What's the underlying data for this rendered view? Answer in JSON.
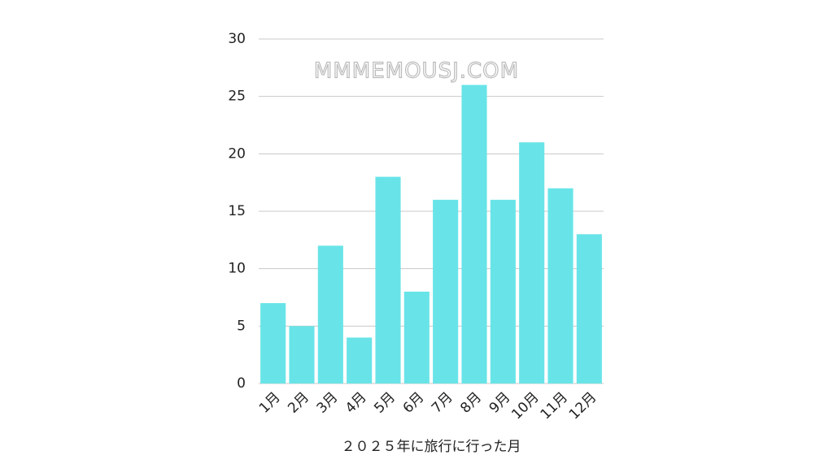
{
  "chart_data": {
    "type": "bar",
    "annotation": "MMMEMOUSJ.COM",
    "x_label": "２０２５年に旅行に行った月",
    "categories": [
      "1月",
      "2月",
      "3月",
      "4月",
      "5月",
      "6月",
      "7月",
      "8月",
      "9月",
      "10月",
      "11月",
      "12月"
    ],
    "values": [
      7,
      5,
      12,
      4,
      18,
      8,
      16,
      26,
      16,
      21,
      17,
      13
    ],
    "color": "#68e4e8",
    "ylim": [
      0,
      30
    ],
    "yticks": [
      0,
      5,
      10,
      15,
      20,
      25,
      30
    ],
    "grid": true
  }
}
